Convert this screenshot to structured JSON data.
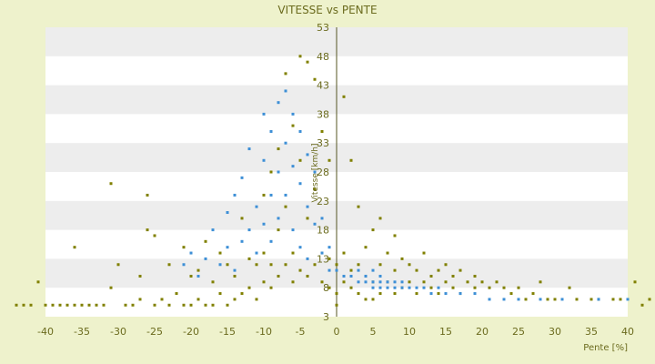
{
  "chart_data": {
    "type": "scatter",
    "title": "VITESSE vs PENTE",
    "xlabel": "Pente [%]",
    "ylabel": "Vitesse [km/h]",
    "xlim": [
      -40,
      40
    ],
    "ylim": [
      3,
      53
    ],
    "x_ticks": [
      -40,
      -35,
      -30,
      -25,
      -20,
      -15,
      -10,
      -5,
      0,
      5,
      10,
      15,
      20,
      25,
      30,
      35,
      40
    ],
    "y_ticks": [
      3,
      8,
      13,
      18,
      23,
      28,
      33,
      38,
      43,
      48,
      53
    ],
    "grid": "horizontal bands",
    "legend": "none",
    "colors": {
      "series_a": "#808000",
      "series_b": "#3d8fd6",
      "axis": "#555522",
      "band": "#ededed"
    },
    "series": [
      {
        "color": "#808000",
        "points": [
          [
            -44,
            5
          ],
          [
            -43,
            5
          ],
          [
            -42,
            5
          ],
          [
            -41,
            9
          ],
          [
            -40,
            5
          ],
          [
            -39,
            5
          ],
          [
            -38,
            5
          ],
          [
            -37,
            5
          ],
          [
            -36,
            15
          ],
          [
            -36,
            5
          ],
          [
            -35,
            5
          ],
          [
            -34,
            5
          ],
          [
            -33,
            5
          ],
          [
            -32,
            5
          ],
          [
            -31,
            8
          ],
          [
            -31,
            26
          ],
          [
            -30,
            12
          ],
          [
            -29,
            5
          ],
          [
            -28,
            5
          ],
          [
            -27,
            6
          ],
          [
            -27,
            10
          ],
          [
            -26,
            24
          ],
          [
            -26,
            18
          ],
          [
            -25,
            17
          ],
          [
            -25,
            5
          ],
          [
            -24,
            6
          ],
          [
            -23,
            12
          ],
          [
            -23,
            5
          ],
          [
            -22,
            7
          ],
          [
            -21,
            5
          ],
          [
            -21,
            15
          ],
          [
            -20,
            10
          ],
          [
            -20,
            5
          ],
          [
            -19,
            11
          ],
          [
            -19,
            6
          ],
          [
            -18,
            5
          ],
          [
            -18,
            16
          ],
          [
            -17,
            9
          ],
          [
            -17,
            5
          ],
          [
            -16,
            7
          ],
          [
            -16,
            14
          ],
          [
            -15,
            5
          ],
          [
            -15,
            12
          ],
          [
            -14,
            10
          ],
          [
            -14,
            6
          ],
          [
            -13,
            20
          ],
          [
            -13,
            7
          ],
          [
            -12,
            8
          ],
          [
            -12,
            13
          ],
          [
            -11,
            12
          ],
          [
            -11,
            6
          ],
          [
            -10,
            24
          ],
          [
            -10,
            9
          ],
          [
            -10,
            14
          ],
          [
            -9,
            28
          ],
          [
            -9,
            8
          ],
          [
            -9,
            12
          ],
          [
            -8,
            32
          ],
          [
            -8,
            10
          ],
          [
            -8,
            18
          ],
          [
            -7,
            45
          ],
          [
            -7,
            12
          ],
          [
            -7,
            22
          ],
          [
            -6,
            36
          ],
          [
            -6,
            14
          ],
          [
            -6,
            9
          ],
          [
            -5,
            48
          ],
          [
            -5,
            30
          ],
          [
            -5,
            11
          ],
          [
            -4,
            47
          ],
          [
            -4,
            20
          ],
          [
            -4,
            10
          ],
          [
            -3,
            44
          ],
          [
            -3,
            25
          ],
          [
            -3,
            12
          ],
          [
            -2,
            35
          ],
          [
            -2,
            14
          ],
          [
            -2,
            9
          ],
          [
            -1,
            30
          ],
          [
            -1,
            13
          ],
          [
            -1,
            8
          ],
          [
            0,
            12
          ],
          [
            0,
            7
          ],
          [
            0,
            5
          ],
          [
            1,
            41
          ],
          [
            1,
            14
          ],
          [
            1,
            9
          ],
          [
            2,
            30
          ],
          [
            2,
            11
          ],
          [
            2,
            8
          ],
          [
            3,
            22
          ],
          [
            3,
            12
          ],
          [
            3,
            7
          ],
          [
            4,
            15
          ],
          [
            4,
            10
          ],
          [
            4,
            6
          ],
          [
            5,
            18
          ],
          [
            5,
            9
          ],
          [
            5,
            6
          ],
          [
            6,
            20
          ],
          [
            6,
            12
          ],
          [
            6,
            7
          ],
          [
            7,
            14
          ],
          [
            7,
            9
          ],
          [
            8,
            17
          ],
          [
            8,
            11
          ],
          [
            8,
            7
          ],
          [
            9,
            13
          ],
          [
            9,
            8
          ],
          [
            10,
            12
          ],
          [
            10,
            9
          ],
          [
            11,
            11
          ],
          [
            11,
            7
          ],
          [
            12,
            14
          ],
          [
            12,
            9
          ],
          [
            13,
            10
          ],
          [
            13,
            8
          ],
          [
            14,
            11
          ],
          [
            14,
            7
          ],
          [
            15,
            12
          ],
          [
            15,
            9
          ],
          [
            16,
            10
          ],
          [
            16,
            8
          ],
          [
            17,
            11
          ],
          [
            17,
            7
          ],
          [
            18,
            9
          ],
          [
            19,
            10
          ],
          [
            19,
            8
          ],
          [
            20,
            9
          ],
          [
            21,
            8
          ],
          [
            22,
            9
          ],
          [
            23,
            8
          ],
          [
            24,
            7
          ],
          [
            25,
            8
          ],
          [
            26,
            6
          ],
          [
            27,
            7
          ],
          [
            28,
            9
          ],
          [
            29,
            6
          ],
          [
            30,
            6
          ],
          [
            32,
            8
          ],
          [
            33,
            6
          ],
          [
            35,
            6
          ],
          [
            36,
            6
          ],
          [
            38,
            6
          ],
          [
            39,
            6
          ],
          [
            41,
            9
          ],
          [
            42,
            5
          ],
          [
            43,
            6
          ]
        ]
      },
      {
        "color": "#3d8fd6",
        "points": [
          [
            -21,
            12
          ],
          [
            -20,
            14
          ],
          [
            -19,
            10
          ],
          [
            -18,
            13
          ],
          [
            -17,
            18
          ],
          [
            -16,
            12
          ],
          [
            -15,
            21
          ],
          [
            -15,
            15
          ],
          [
            -14,
            24
          ],
          [
            -14,
            11
          ],
          [
            -13,
            16
          ],
          [
            -13,
            27
          ],
          [
            -12,
            18
          ],
          [
            -12,
            32
          ],
          [
            -11,
            22
          ],
          [
            -11,
            14
          ],
          [
            -10,
            30
          ],
          [
            -10,
            19
          ],
          [
            -10,
            38
          ],
          [
            -9,
            35
          ],
          [
            -9,
            24
          ],
          [
            -9,
            16
          ],
          [
            -8,
            40
          ],
          [
            -8,
            28
          ],
          [
            -8,
            20
          ],
          [
            -7,
            42
          ],
          [
            -7,
            33
          ],
          [
            -7,
            24
          ],
          [
            -6,
            38
          ],
          [
            -6,
            29
          ],
          [
            -6,
            18
          ],
          [
            -5,
            35
          ],
          [
            -5,
            26
          ],
          [
            -5,
            15
          ],
          [
            -4,
            31
          ],
          [
            -4,
            22
          ],
          [
            -4,
            13
          ],
          [
            -3,
            28
          ],
          [
            -3,
            19
          ],
          [
            -2,
            20
          ],
          [
            -2,
            14
          ],
          [
            -1,
            15
          ],
          [
            -1,
            11
          ],
          [
            0,
            11
          ],
          [
            1,
            10
          ],
          [
            2,
            10
          ],
          [
            3,
            9
          ],
          [
            3,
            11
          ],
          [
            4,
            9
          ],
          [
            4,
            10
          ],
          [
            5,
            9
          ],
          [
            5,
            8
          ],
          [
            5,
            11
          ],
          [
            6,
            9
          ],
          [
            6,
            8
          ],
          [
            6,
            10
          ],
          [
            7,
            9
          ],
          [
            7,
            8
          ],
          [
            8,
            9
          ],
          [
            8,
            8
          ],
          [
            9,
            8
          ],
          [
            9,
            9
          ],
          [
            10,
            8
          ],
          [
            11,
            8
          ],
          [
            12,
            8
          ],
          [
            13,
            7
          ],
          [
            14,
            8
          ],
          [
            15,
            7
          ],
          [
            17,
            7
          ],
          [
            19,
            7
          ],
          [
            21,
            6
          ],
          [
            23,
            6
          ],
          [
            25,
            6
          ],
          [
            28,
            6
          ],
          [
            31,
            6
          ],
          [
            36,
            6
          ],
          [
            40,
            6
          ]
        ]
      }
    ]
  }
}
